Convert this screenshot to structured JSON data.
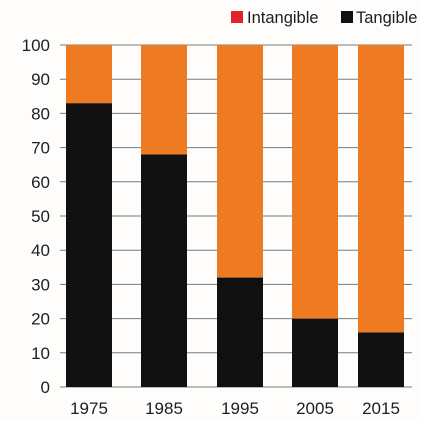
{
  "chart_data": {
    "type": "bar",
    "stacked": true,
    "title": "",
    "xlabel": "",
    "ylabel": "",
    "categories": [
      "1975",
      "1985",
      "1995",
      "2005",
      "2015"
    ],
    "series": [
      {
        "name": "Tangible",
        "values": [
          83,
          68,
          32,
          20,
          16
        ],
        "color": "#111111"
      },
      {
        "name": "Intangible",
        "values": [
          17,
          32,
          68,
          80,
          84
        ],
        "color": "#ee7b22"
      }
    ],
    "ylim": [
      0,
      100
    ],
    "yticks": [
      0,
      10,
      20,
      30,
      40,
      50,
      60,
      70,
      80,
      90,
      100
    ],
    "grid": true,
    "legend": {
      "position": "top-right",
      "entries": [
        {
          "label": "Intangible",
          "swatch_color": "#e0232b"
        },
        {
          "label": "Tangible",
          "swatch_color": "#111111"
        }
      ]
    },
    "colors": {
      "grid": "#7a7a7a",
      "axis": "#555555"
    }
  }
}
